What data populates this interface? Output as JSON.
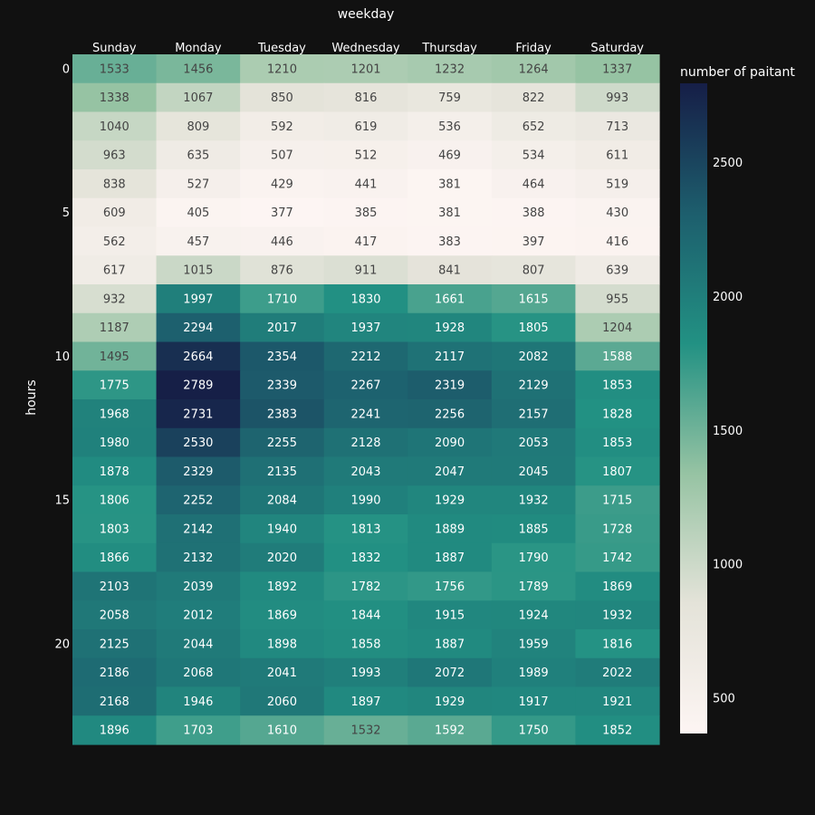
{
  "chart_data": {
    "type": "heatmap",
    "title": "",
    "xlabel": "weekday",
    "ylabel": "hours",
    "x_position": "top",
    "colorbar_title": "number of paitant",
    "colorscale": [
      "#fdf5f3",
      "#e4e3d9",
      "#96c3a3",
      "#229183",
      "#1d5e6d",
      "#161e47"
    ],
    "zlim": [
      369,
      2795
    ],
    "colorbar_ticks": [
      500,
      1000,
      1500,
      2000,
      2500
    ],
    "categories": [
      "Sunday",
      "Monday",
      "Tuesday",
      "Wednesday",
      "Thursday",
      "Friday",
      "Saturday"
    ],
    "y": [
      0,
      1,
      2,
      3,
      4,
      5,
      6,
      7,
      8,
      9,
      10,
      11,
      12,
      13,
      14,
      15,
      16,
      17,
      18,
      19,
      20,
      21,
      22,
      23
    ],
    "y_ticks": [
      0,
      5,
      10,
      15,
      20
    ],
    "values": [
      [
        1533,
        1456,
        1210,
        1201,
        1232,
        1264,
        1337
      ],
      [
        1338,
        1067,
        850,
        816,
        759,
        822,
        993
      ],
      [
        1040,
        809,
        592,
        619,
        536,
        652,
        713
      ],
      [
        963,
        635,
        507,
        512,
        469,
        534,
        611
      ],
      [
        838,
        527,
        429,
        441,
        381,
        464,
        519
      ],
      [
        609,
        405,
        377,
        385,
        381,
        388,
        430
      ],
      [
        562,
        457,
        446,
        417,
        383,
        397,
        416
      ],
      [
        617,
        1015,
        876,
        911,
        841,
        807,
        639
      ],
      [
        932,
        1997,
        1710,
        1830,
        1661,
        1615,
        955
      ],
      [
        1187,
        2294,
        2017,
        1937,
        1928,
        1805,
        1204
      ],
      [
        1495,
        2664,
        2354,
        2212,
        2117,
        2082,
        1588
      ],
      [
        1775,
        2789,
        2339,
        2267,
        2319,
        2129,
        1853
      ],
      [
        1968,
        2731,
        2383,
        2241,
        2256,
        2157,
        1828
      ],
      [
        1980,
        2530,
        2255,
        2128,
        2090,
        2053,
        1853
      ],
      [
        1878,
        2329,
        2135,
        2043,
        2047,
        2045,
        1807
      ],
      [
        1806,
        2252,
        2084,
        1990,
        1929,
        1932,
        1715
      ],
      [
        1803,
        2142,
        1940,
        1813,
        1889,
        1885,
        1728
      ],
      [
        1866,
        2132,
        2020,
        1832,
        1887,
        1790,
        1742
      ],
      [
        2103,
        2039,
        1892,
        1782,
        1756,
        1789,
        1869
      ],
      [
        2058,
        2012,
        1869,
        1844,
        1915,
        1924,
        1932
      ],
      [
        2125,
        2044,
        1898,
        1858,
        1887,
        1959,
        1816
      ],
      [
        2186,
        2068,
        2041,
        1993,
        2072,
        1989,
        2022
      ],
      [
        2168,
        1946,
        2060,
        1897,
        1929,
        1917,
        1921
      ],
      [
        1896,
        1703,
        1610,
        1532,
        1592,
        1750,
        1852
      ]
    ]
  }
}
